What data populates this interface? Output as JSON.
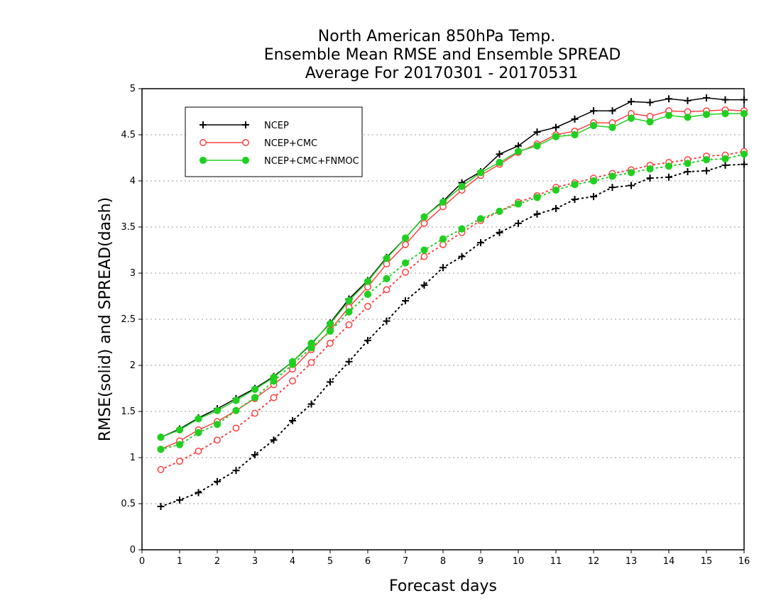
{
  "chart_data": {
    "type": "line",
    "title_lines": [
      "North American 850hPa Temp.",
      "Ensemble Mean RMSE and Ensemble SPREAD",
      "Average For 20170301 - 20170531"
    ],
    "xlabel": "Forecast days",
    "ylabel": "RMSE(solid) and SPREAD(dash)",
    "xlim": [
      0,
      16
    ],
    "ylim": [
      0,
      5
    ],
    "x_ticks": [
      "0",
      "1",
      "2",
      "3",
      "4",
      "5",
      "6",
      "7",
      "8",
      "9",
      "10",
      "11",
      "12",
      "13",
      "14",
      "15",
      "16"
    ],
    "y_ticks": [
      "0",
      "0.5",
      "1",
      "1.5",
      "2",
      "2.5",
      "3",
      "3.5",
      "4",
      "4.5",
      "5"
    ],
    "grid": "horizontal dotted",
    "legend_position": "top-left",
    "x": [
      0.5,
      1,
      1.5,
      2,
      2.5,
      3,
      3.5,
      4,
      4.5,
      5,
      5.5,
      6,
      6.5,
      7,
      7.5,
      8,
      8.5,
      9,
      9.5,
      10,
      10.5,
      11,
      11.5,
      12,
      12.5,
      13,
      13.5,
      14,
      14.5,
      15,
      15.5,
      16
    ],
    "series": [
      {
        "name": "NCEP",
        "metric": "RMSE",
        "style": "solid",
        "marker": "plus",
        "color": "#000000",
        "values": [
          1.22,
          1.31,
          1.43,
          1.53,
          1.64,
          1.75,
          1.88,
          2.04,
          2.23,
          2.46,
          2.72,
          2.92,
          3.17,
          3.38,
          3.61,
          3.78,
          3.98,
          4.1,
          4.29,
          4.38,
          4.53,
          4.58,
          4.67,
          4.76,
          4.76,
          4.86,
          4.85,
          4.89,
          4.87,
          4.9,
          4.88,
          4.88
        ]
      },
      {
        "name": "NCEP+CMC",
        "metric": "RMSE",
        "style": "solid",
        "marker": "open-circle",
        "color": "#ff4040",
        "values": [
          1.09,
          1.18,
          1.3,
          1.39,
          1.51,
          1.64,
          1.79,
          1.96,
          2.17,
          2.38,
          2.63,
          2.85,
          3.1,
          3.31,
          3.54,
          3.72,
          3.9,
          4.06,
          4.18,
          4.31,
          4.4,
          4.5,
          4.54,
          4.63,
          4.63,
          4.73,
          4.7,
          4.76,
          4.75,
          4.76,
          4.77,
          4.76
        ]
      },
      {
        "name": "NCEP+CMC+FNMOC",
        "metric": "RMSE",
        "style": "solid",
        "marker": "filled-circle",
        "color": "#20d020",
        "values": [
          1.22,
          1.3,
          1.42,
          1.51,
          1.62,
          1.74,
          1.87,
          2.04,
          2.24,
          2.45,
          2.7,
          2.91,
          3.16,
          3.38,
          3.61,
          3.77,
          3.94,
          4.09,
          4.2,
          4.32,
          4.38,
          4.48,
          4.5,
          4.6,
          4.58,
          4.68,
          4.64,
          4.71,
          4.69,
          4.72,
          4.73,
          4.73
        ]
      },
      {
        "name": "NCEP",
        "metric": "SPREAD",
        "style": "dotted",
        "marker": "plus",
        "color": "#000000",
        "values": [
          0.47,
          0.54,
          0.62,
          0.74,
          0.86,
          1.03,
          1.19,
          1.4,
          1.58,
          1.82,
          2.04,
          2.27,
          2.48,
          2.7,
          2.87,
          3.06,
          3.18,
          3.33,
          3.44,
          3.54,
          3.64,
          3.7,
          3.8,
          3.83,
          3.93,
          3.95,
          4.03,
          4.04,
          4.1,
          4.11,
          4.17,
          4.18
        ]
      },
      {
        "name": "NCEP+CMC",
        "metric": "SPREAD",
        "style": "dotted",
        "marker": "open-circle",
        "color": "#ff4040",
        "values": [
          0.87,
          0.96,
          1.07,
          1.19,
          1.32,
          1.48,
          1.65,
          1.83,
          2.03,
          2.24,
          2.44,
          2.64,
          2.82,
          3.01,
          3.18,
          3.31,
          3.44,
          3.57,
          3.67,
          3.77,
          3.84,
          3.93,
          3.98,
          4.03,
          4.08,
          4.12,
          4.17,
          4.2,
          4.23,
          4.27,
          4.28,
          4.32
        ]
      },
      {
        "name": "NCEP+CMC+FNMOC",
        "metric": "SPREAD",
        "style": "dotted",
        "marker": "filled-circle",
        "color": "#20d020",
        "values": [
          1.09,
          1.14,
          1.27,
          1.36,
          1.51,
          1.65,
          1.83,
          2.01,
          2.19,
          2.37,
          2.58,
          2.77,
          2.94,
          3.11,
          3.25,
          3.37,
          3.48,
          3.59,
          3.67,
          3.75,
          3.82,
          3.9,
          3.96,
          4.0,
          4.05,
          4.09,
          4.13,
          4.16,
          4.19,
          4.23,
          4.24,
          4.29
        ]
      }
    ],
    "legend": [
      {
        "label": "NCEP",
        "marker": "plus",
        "color": "#000000"
      },
      {
        "label": "NCEP+CMC",
        "marker": "open-circle",
        "color": "#ff4040"
      },
      {
        "label": "NCEP+CMC+FNMOC",
        "marker": "filled-circle",
        "color": "#20d020"
      }
    ]
  }
}
